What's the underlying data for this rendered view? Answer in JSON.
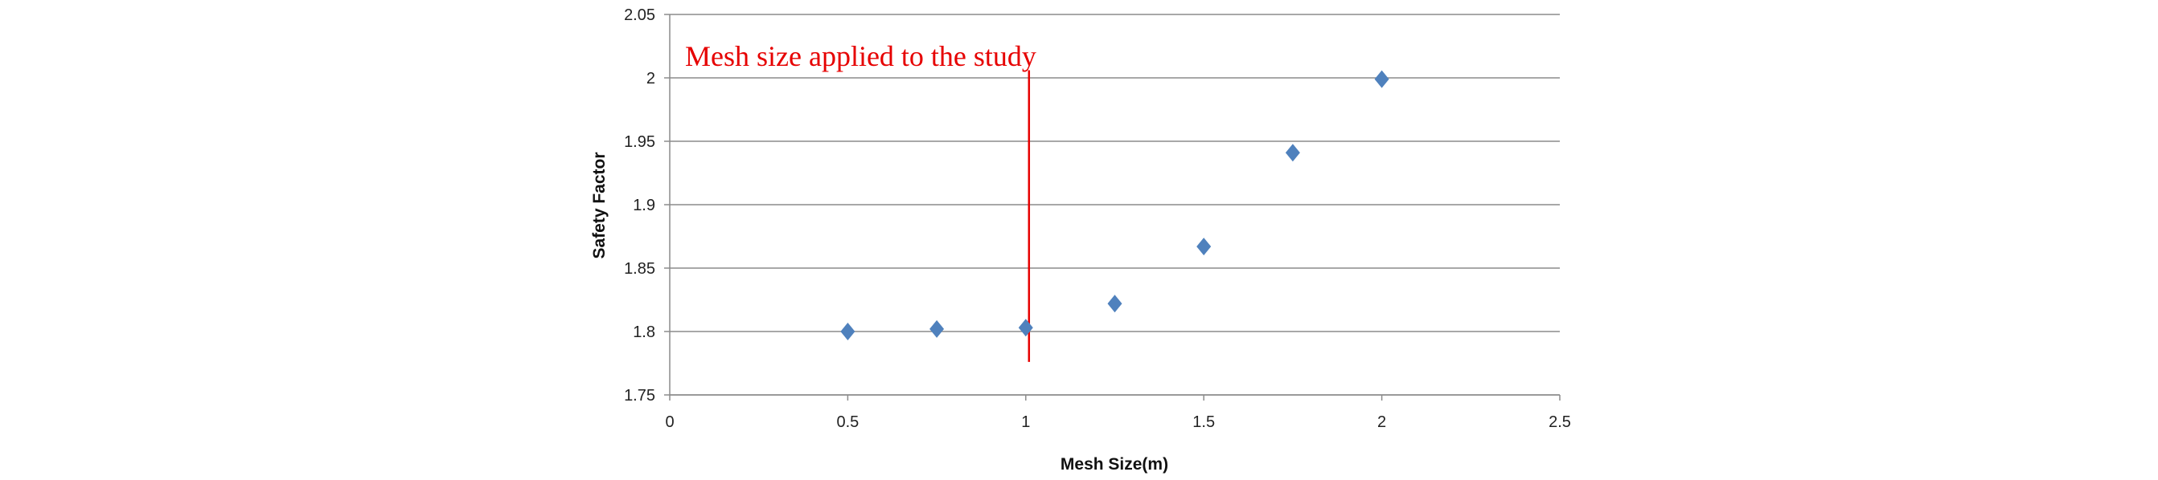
{
  "chart_data": {
    "type": "scatter",
    "title": "",
    "xlabel": "Mesh Size(m)",
    "ylabel": "Safety Factor",
    "xlim": [
      0,
      2.5
    ],
    "ylim": [
      1.75,
      2.05
    ],
    "x_ticks": [
      "0",
      "0.5",
      "1",
      "1.5",
      "2",
      "2.5"
    ],
    "y_ticks": [
      "1.75",
      "1.8",
      "1.85",
      "1.9",
      "1.95",
      "2",
      "2.05"
    ],
    "grid": "horizontal",
    "legend": "none",
    "series": [
      {
        "marker": "diamond",
        "color": "#4f81bd",
        "points": [
          {
            "x": 0.5,
            "y": 1.8
          },
          {
            "x": 0.75,
            "y": 1.802
          },
          {
            "x": 1.0,
            "y": 1.803
          },
          {
            "x": 1.25,
            "y": 1.822
          },
          {
            "x": 1.5,
            "y": 1.867
          },
          {
            "x": 1.75,
            "y": 1.941
          },
          {
            "x": 2.0,
            "y": 1.999
          }
        ]
      }
    ],
    "annotations": [
      {
        "text": "Mesh size applied to the study",
        "color": "#e60000",
        "line_x": 1.0,
        "line_y_range": [
          1.776,
          2.006
        ]
      }
    ]
  }
}
